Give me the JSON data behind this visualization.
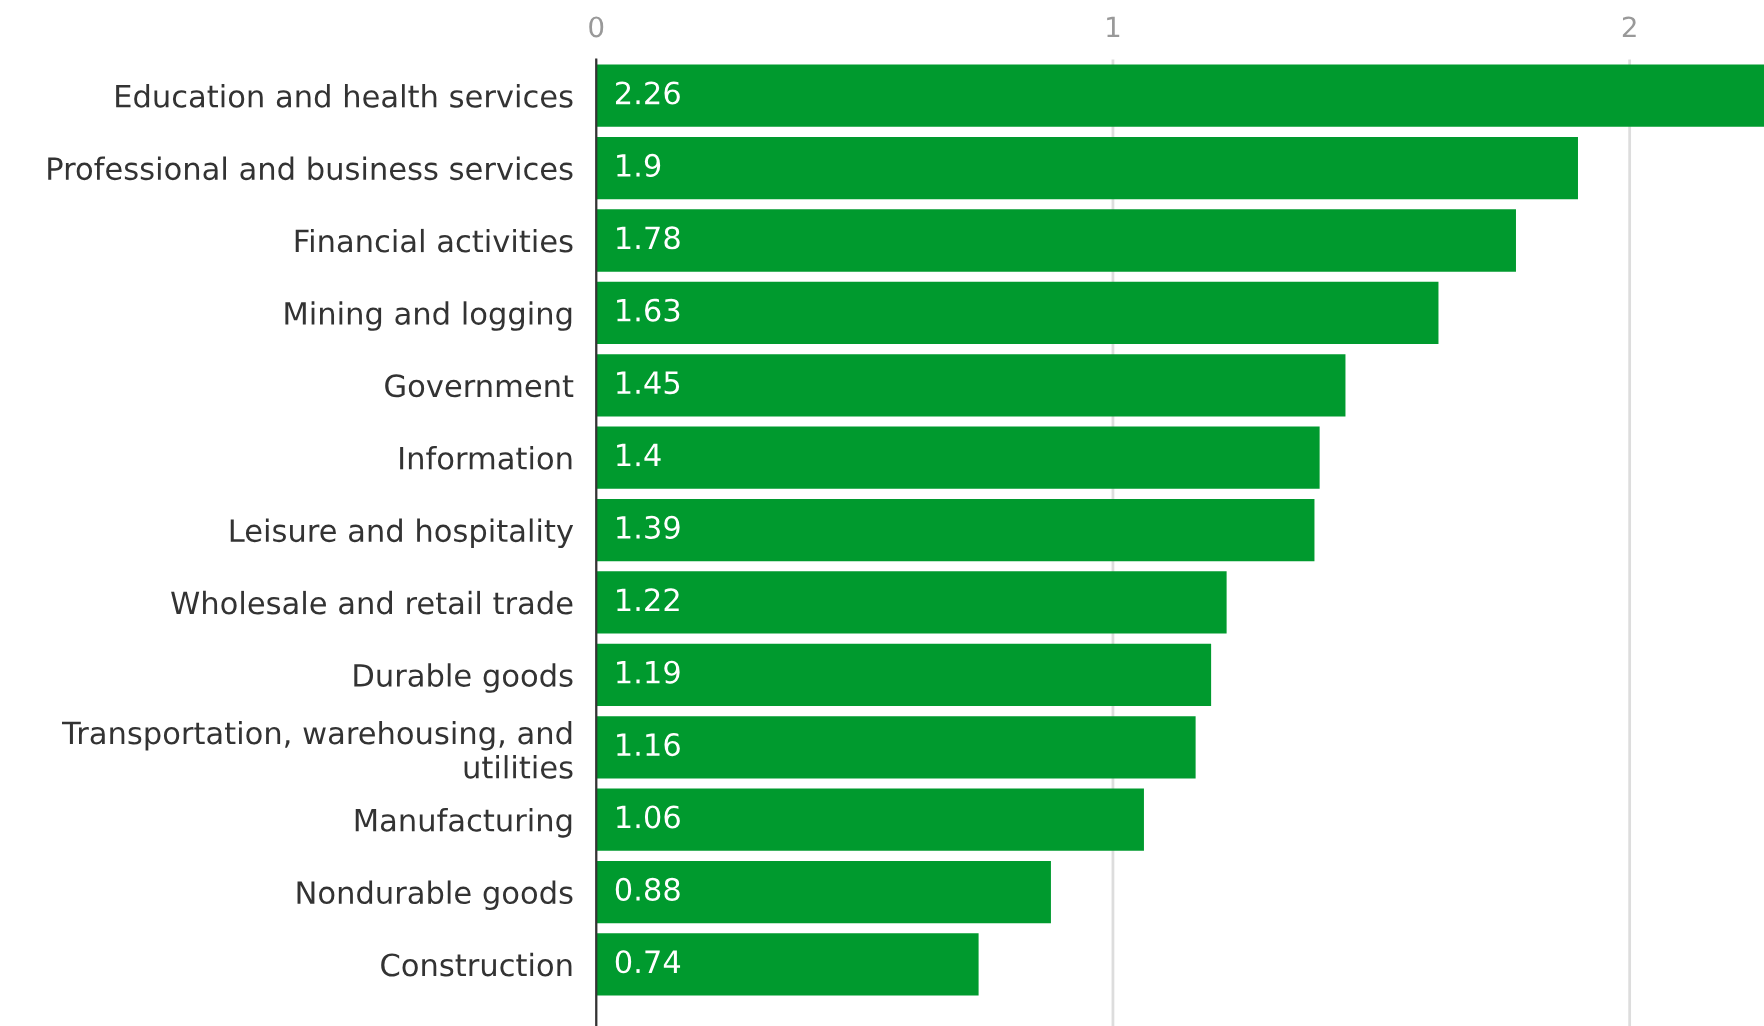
{
  "chart_data": {
    "type": "bar",
    "orientation": "horizontal",
    "categories": [
      "Education and health services",
      "Professional and business services",
      "Financial activities",
      "Mining and logging",
      "Government",
      "Information",
      "Leisure and hospitality",
      "Wholesale and retail trade",
      "Durable goods",
      "Transportation, warehousing, and utilities",
      "Manufacturing",
      "Nondurable goods",
      "Construction"
    ],
    "values": [
      2.26,
      1.9,
      1.78,
      1.63,
      1.45,
      1.4,
      1.39,
      1.22,
      1.19,
      1.16,
      1.06,
      0.88,
      0.74
    ],
    "color": "#009a2e",
    "xlim": [
      0,
      2.26
    ],
    "xticks": [
      0,
      1,
      2
    ],
    "grid": "x",
    "data_labels": true,
    "legend": false
  }
}
